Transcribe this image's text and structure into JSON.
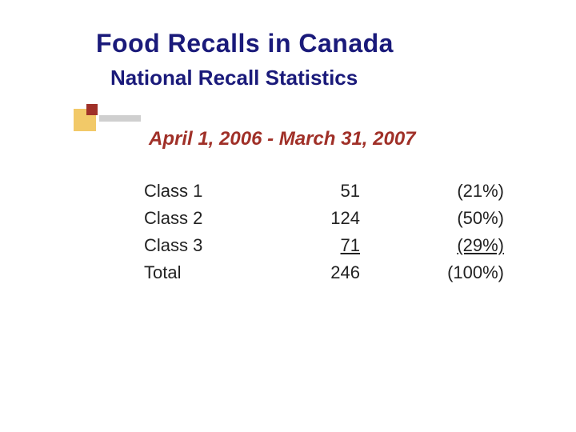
{
  "title": "Food Recalls in Canada",
  "subtitle": "National Recall Statistics",
  "dateline": "April 1, 2006 - March 31, 2007",
  "table": {
    "rows": [
      {
        "label": "Class 1",
        "value": "51",
        "percent": "(21%)",
        "underline_value": false,
        "underline_percent": false
      },
      {
        "label": "Class 2",
        "value": "124",
        "percent": "(50%)",
        "underline_value": false,
        "underline_percent": false
      },
      {
        "label": "Class 3",
        "value": " 71 ",
        "percent": " (29%) ",
        "underline_value": true,
        "underline_percent": true
      },
      {
        "label": "Total",
        "value": "246",
        "percent": "(100%)",
        "underline_value": false,
        "underline_percent": false
      }
    ]
  },
  "decor": {
    "yellow_block": "#f2c968",
    "red_block": "#a03028",
    "gray_block": "#cfcfcf"
  },
  "colors": {
    "title": "#1a1a7a",
    "accent": "#a03028",
    "body": "#222222",
    "background": "#ffffff"
  },
  "fontsizes": {
    "title": 32,
    "subtitle": 26,
    "dateline": 24,
    "body": 22
  }
}
